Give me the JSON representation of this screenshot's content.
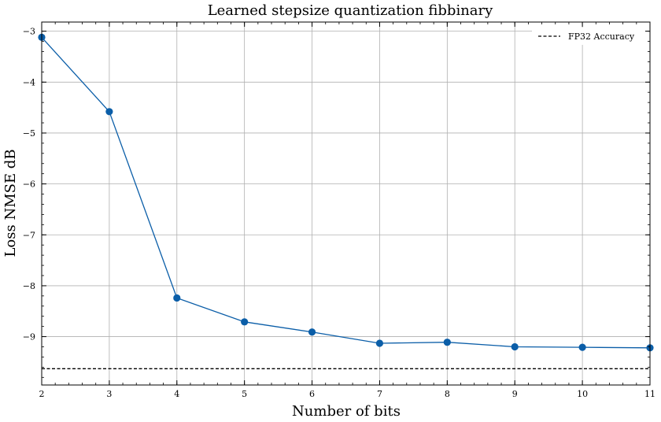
{
  "chart_data": {
    "type": "line",
    "title": "Learned stepsize quantization fibbinary",
    "xlabel": "Number of bits",
    "ylabel": "Loss NMSE dB",
    "x": [
      2,
      3,
      4,
      5,
      6,
      7,
      8,
      9,
      10,
      11
    ],
    "series": [
      {
        "values": [
          -3.12,
          -4.58,
          -8.24,
          -8.71,
          -8.91,
          -9.13,
          -9.11,
          -9.2,
          -9.21,
          -9.22
        ],
        "color": "#0b5ea8",
        "marker": "circle"
      }
    ],
    "reference_line": {
      "name": "FP32 Accuracy",
      "value": -9.63,
      "color": "#000000",
      "style": "dashed"
    },
    "xlim": [
      2,
      11
    ],
    "ylim": [
      -9.95,
      -2.82
    ],
    "x_ticks": [
      2,
      3,
      4,
      5,
      6,
      7,
      8,
      9,
      10,
      11
    ],
    "x_tick_labels": [
      "2",
      "3",
      "4",
      "5",
      "6",
      "7",
      "8",
      "9",
      "10",
      "11"
    ],
    "y_ticks": [
      -3,
      -4,
      -5,
      -6,
      -7,
      -8,
      -9
    ],
    "y_tick_labels": [
      "−3",
      "−4",
      "−5",
      "−6",
      "−7",
      "−8",
      "−9"
    ],
    "grid": true,
    "legend_position": "top-right"
  }
}
